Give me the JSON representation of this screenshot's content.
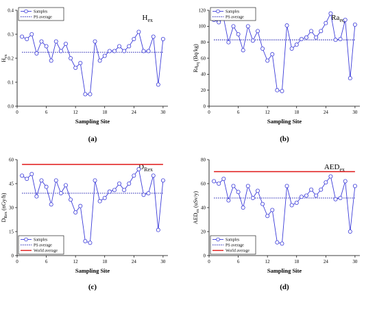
{
  "chart_data": [
    {
      "id": "hex",
      "type": "line",
      "caption": "(a)",
      "title": "H",
      "title_sub": "ex",
      "ylabel": "H",
      "ylabel_sub": "ex",
      "ylabel_rest": "",
      "xlabel": "Sampling Site",
      "xlim": [
        0,
        31
      ],
      "ylim": [
        0.0,
        0.4
      ],
      "xticks": [
        0,
        6,
        12,
        18,
        24,
        30
      ],
      "yticks": [
        0.0,
        0.1,
        0.2,
        0.3,
        0.4
      ],
      "ytick_decimals": 1,
      "legend_position": "top-left",
      "x": [
        1,
        2,
        3,
        4,
        5,
        6,
        7,
        8,
        9,
        10,
        11,
        12,
        13,
        14,
        15,
        16,
        17,
        18,
        19,
        20,
        21,
        22,
        23,
        24,
        25,
        26,
        27,
        28,
        29,
        30
      ],
      "series": [
        {
          "name": "Samples",
          "values": [
            0.29,
            0.28,
            0.3,
            0.22,
            0.27,
            0.25,
            0.19,
            0.27,
            0.23,
            0.26,
            0.2,
            0.16,
            0.18,
            0.05,
            0.05,
            0.27,
            0.19,
            0.21,
            0.23,
            0.23,
            0.25,
            0.23,
            0.25,
            0.28,
            0.31,
            0.23,
            0.23,
            0.29,
            0.09,
            0.28
          ]
        }
      ],
      "ps_average": {
        "name": "PS average",
        "value": 0.225
      },
      "world_average": null
    },
    {
      "id": "raeq",
      "type": "line",
      "caption": "(b)",
      "title": "Ra",
      "title_sub": "eq",
      "ylabel": "Ra",
      "ylabel_sub": "eq",
      "ylabel_rest": " (Bq/kg)",
      "xlabel": "Sampling Site",
      "xlim": [
        0,
        31
      ],
      "ylim": [
        0,
        120
      ],
      "xticks": [
        0,
        6,
        12,
        18,
        24,
        30
      ],
      "yticks": [
        0,
        20,
        40,
        60,
        80,
        100,
        120
      ],
      "ytick_decimals": 0,
      "legend_position": "top-left",
      "x": [
        1,
        2,
        3,
        4,
        5,
        6,
        7,
        8,
        9,
        10,
        11,
        12,
        13,
        14,
        15,
        16,
        17,
        18,
        19,
        20,
        21,
        22,
        23,
        24,
        25,
        26,
        27,
        28,
        29,
        30
      ],
      "series": [
        {
          "name": "Samples",
          "values": [
            108,
            105,
            110,
            80,
            100,
            90,
            70,
            100,
            82,
            94,
            72,
            57,
            65,
            20,
            19,
            101,
            72,
            77,
            84,
            86,
            94,
            86,
            94,
            104,
            116,
            83,
            84,
            108,
            35,
            102
          ]
        }
      ],
      "ps_average": {
        "name": "PS average",
        "value": 83
      },
      "world_average": null
    },
    {
      "id": "drex",
      "type": "line",
      "caption": "(c)",
      "title": "D",
      "title_sub": "Rex",
      "ylabel": "D",
      "ylabel_sub": "Rex",
      "ylabel_rest": " (nGy/h)",
      "xlabel": "Sampling Site",
      "xlim": [
        0,
        31
      ],
      "ylim": [
        0,
        60
      ],
      "xticks": [
        0,
        6,
        12,
        18,
        24,
        30
      ],
      "yticks": [
        0,
        15,
        30,
        45,
        60
      ],
      "ytick_decimals": 0,
      "legend_position": "bottom-left",
      "x": [
        1,
        2,
        3,
        4,
        5,
        6,
        7,
        8,
        9,
        10,
        11,
        12,
        13,
        14,
        15,
        16,
        17,
        18,
        19,
        20,
        21,
        22,
        23,
        24,
        25,
        26,
        27,
        28,
        29,
        30
      ],
      "series": [
        {
          "name": "Samples",
          "values": [
            50,
            48,
            51,
            37,
            47,
            43,
            32,
            47,
            39,
            44,
            35,
            27,
            31,
            9,
            8,
            47,
            34,
            36,
            40,
            41,
            45,
            41,
            45,
            50,
            54,
            38,
            39,
            50,
            16,
            47
          ]
        }
      ],
      "ps_average": {
        "name": "PS average",
        "value": 39
      },
      "world_average": {
        "name": "World average",
        "value": 57
      }
    },
    {
      "id": "aedex",
      "type": "line",
      "caption": "(d)",
      "title": "AED",
      "title_sub": "ex",
      "ylabel": "AED",
      "ylabel_sub": "ex",
      "ylabel_rest": " (uSv/y)",
      "xlabel": "Sampling Site",
      "xlim": [
        0,
        31
      ],
      "ylim": [
        0,
        80
      ],
      "xticks": [
        0,
        6,
        12,
        18,
        24,
        30
      ],
      "yticks": [
        0,
        20,
        40,
        60,
        80
      ],
      "ytick_decimals": 0,
      "legend_position": "bottom-left",
      "x": [
        1,
        2,
        3,
        4,
        5,
        6,
        7,
        8,
        9,
        10,
        11,
        12,
        13,
        14,
        15,
        16,
        17,
        18,
        19,
        20,
        21,
        22,
        23,
        24,
        25,
        26,
        27,
        28,
        29,
        30
      ],
      "series": [
        {
          "name": "Samples",
          "values": [
            62,
            60,
            64,
            46,
            58,
            53,
            40,
            58,
            48,
            54,
            43,
            33,
            38,
            11,
            10,
            58,
            42,
            44,
            49,
            50,
            55,
            50,
            55,
            61,
            66,
            47,
            48,
            62,
            20,
            58
          ]
        }
      ],
      "ps_average": {
        "name": "PS average",
        "value": 48
      },
      "world_average": {
        "name": "World average",
        "value": 70
      }
    }
  ],
  "colors": {
    "samples": "#3b3bd9",
    "ps_average": "#1c1cb0",
    "world_average": "#e01515"
  }
}
